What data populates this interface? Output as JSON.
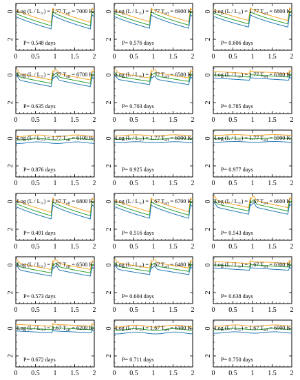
{
  "chart_data": {
    "type": "line",
    "layout_grid": "6 rows x 3 columns of small-multiple light-curve panels",
    "x_axis": {
      "ticks": [
        "0",
        "0.5",
        "1",
        "1.5",
        "2"
      ],
      "range": [
        0,
        2
      ]
    },
    "y_axis": {
      "ticks": [
        "0",
        "2"
      ],
      "range": [
        -0.6,
        2.8
      ],
      "inverted": true
    },
    "series": [
      {
        "color": "#F5A623"
      },
      {
        "color": "#2CA02C"
      },
      {
        "color": "#1F77B4"
      }
    ],
    "panels": [
      {
        "logL": "1.77",
        "teff": "7000",
        "period": "P= 0.548 days",
        "offsets": [
          0.0,
          0.25,
          0.48
        ],
        "amp": 1.3,
        "shape": "saw"
      },
      {
        "logL": "1.77",
        "teff": "6900",
        "period": "P= 0.576 days",
        "offsets": [
          0.0,
          0.25,
          0.48
        ],
        "amp": 1.25,
        "shape": "saw"
      },
      {
        "logL": "1.77",
        "teff": "6800",
        "period": "P= 0.606 days",
        "offsets": [
          0.0,
          0.25,
          0.48
        ],
        "amp": 1.15,
        "shape": "saw"
      },
      {
        "logL": "1.77",
        "teff": "6700",
        "period": "P= 0.635 days",
        "offsets": [
          0.0,
          0.25,
          0.48
        ],
        "amp": 1.05,
        "shape": "bump"
      },
      {
        "logL": "1.77",
        "teff": "6500",
        "period": "P= 0.703 days",
        "offsets": [
          0.0,
          0.25,
          0.48
        ],
        "amp": 0.85,
        "shape": "bump"
      },
      {
        "logL": "1.77",
        "teff": "6300",
        "period": "P= 0.785 days",
        "offsets": [
          0.0,
          0.25,
          0.48
        ],
        "amp": 0.55,
        "shape": "flat"
      },
      {
        "logL": "1.77",
        "teff": "6100",
        "period": "P= 0.876 days",
        "offsets": [
          0.1,
          0.35,
          0.6
        ],
        "amp": 0.25,
        "shape": "low"
      },
      {
        "logL": "1.77",
        "teff": "6000",
        "period": "P= 0.925 days",
        "offsets": [
          0.1,
          0.35,
          0.6
        ],
        "amp": 0.18,
        "shape": "low"
      },
      {
        "logL": "1.77",
        "teff": "5900",
        "period": "P= 0.977 days",
        "offsets": [
          0.1,
          0.35,
          0.6
        ],
        "amp": 0.12,
        "shape": "low"
      },
      {
        "logL": "1.67",
        "teff": "6800",
        "period": "P= 0.491 days",
        "offsets": [
          0.0,
          0.25,
          0.48
        ],
        "amp": 1.3,
        "shape": "saw"
      },
      {
        "logL": "1.67",
        "teff": "6700",
        "period": "P= 0.516 days",
        "offsets": [
          0.0,
          0.25,
          0.48
        ],
        "amp": 1.25,
        "shape": "saw"
      },
      {
        "logL": "1.67",
        "teff": "6600",
        "period": "P= 0.543 days",
        "offsets": [
          0.0,
          0.25,
          0.48
        ],
        "amp": 1.15,
        "shape": "bump"
      },
      {
        "logL": "1.67",
        "teff": "6500",
        "period": "P= 0.573 days",
        "offsets": [
          0.0,
          0.25,
          0.48
        ],
        "amp": 1.0,
        "shape": "bump"
      },
      {
        "logL": "1.67",
        "teff": "6400",
        "period": "P= 0.604 days",
        "offsets": [
          0.0,
          0.25,
          0.48
        ],
        "amp": 0.85,
        "shape": "bump"
      },
      {
        "logL": "1.67",
        "teff": "6300",
        "period": "P= 0.638 days",
        "offsets": [
          0.0,
          0.25,
          0.48
        ],
        "amp": 0.55,
        "shape": "flat"
      },
      {
        "logL": "1.67",
        "teff": "6200",
        "period": "P= 0.672 days",
        "offsets": [
          0.0,
          0.25,
          0.48
        ],
        "amp": 0.45,
        "shape": "flat"
      },
      {
        "logL": "1.67",
        "teff": "6100",
        "period": "P= 0.711 days",
        "offsets": [
          0.1,
          0.35,
          0.6
        ],
        "amp": 0.3,
        "shape": "low"
      },
      {
        "logL": "1.67",
        "teff": "6000",
        "period": "P= 0.750 days",
        "offsets": [
          0.1,
          0.35,
          0.6
        ],
        "amp": 0.22,
        "shape": "low"
      }
    ]
  }
}
